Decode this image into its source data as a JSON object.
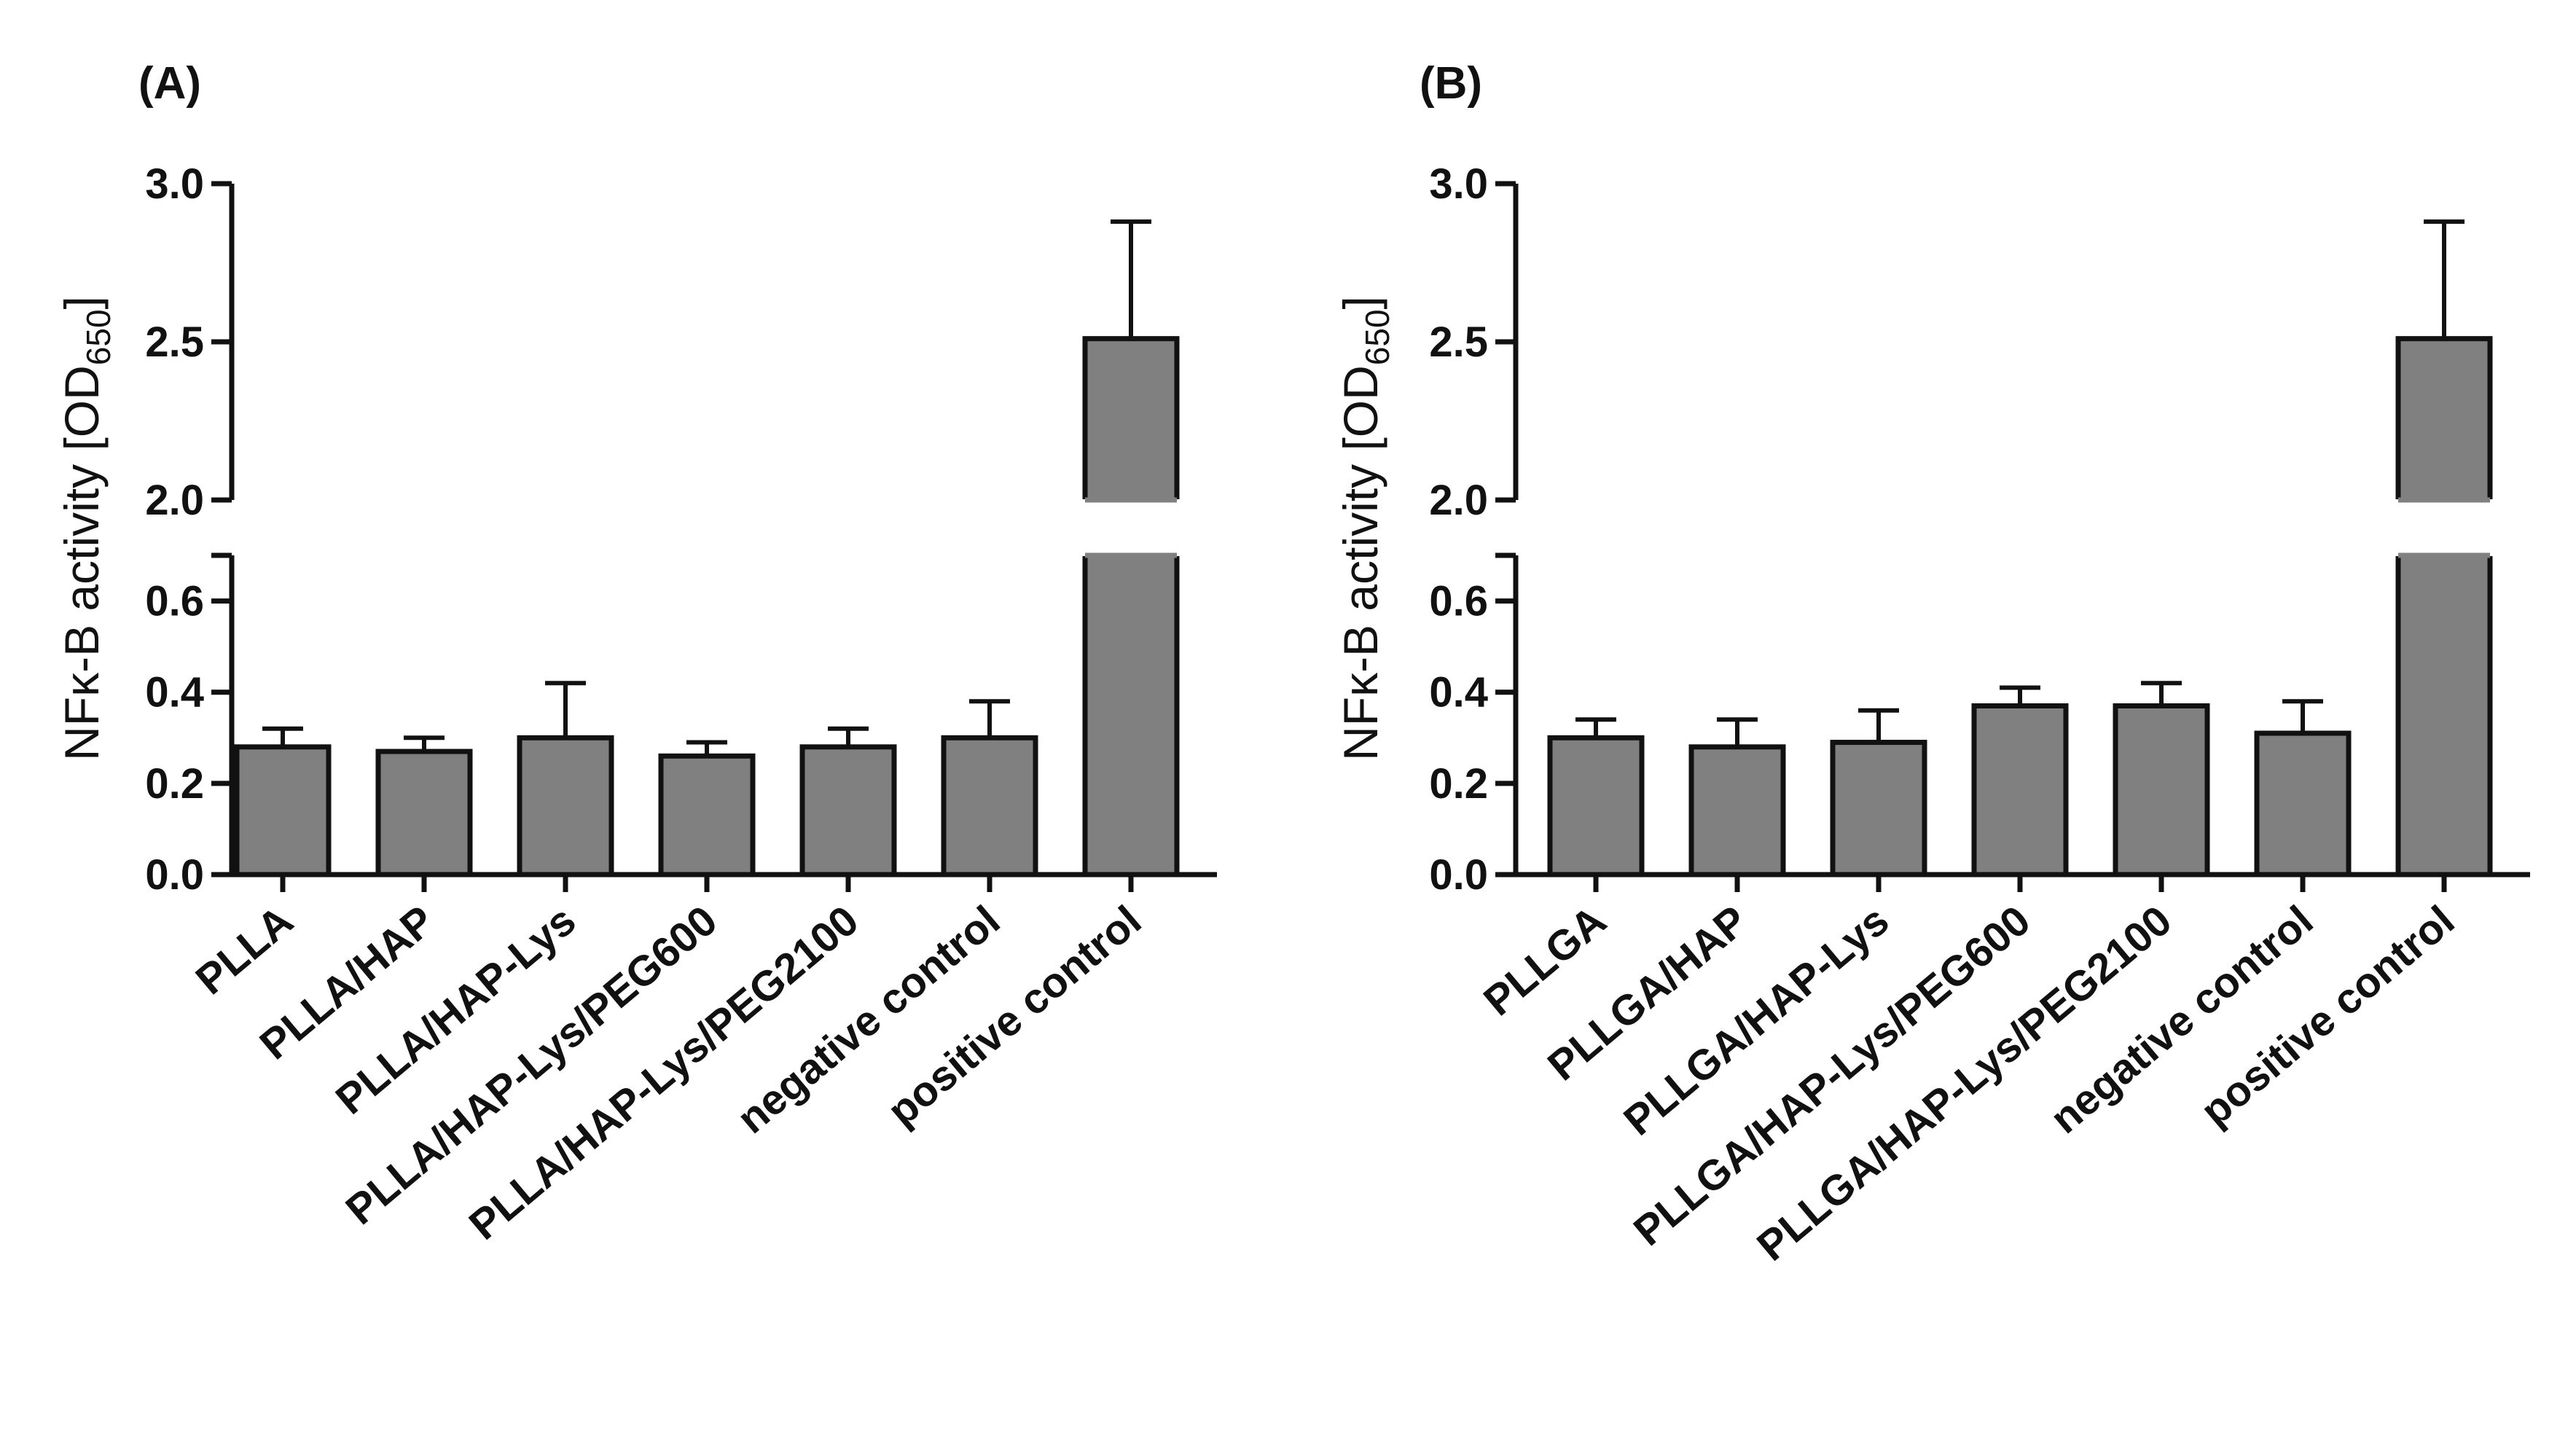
{
  "chart_data": [
    {
      "panel": "(A)",
      "type": "bar",
      "ylabel": {
        "main": "NFκ-B activity [OD",
        "sub": "650",
        "close": "]"
      },
      "axis_break": {
        "lower_range": [
          0,
          0.7
        ],
        "upper_range": [
          2.0,
          3.0
        ]
      },
      "lower_ticks": [
        "0.0",
        "0.2",
        "0.4",
        "0.6"
      ],
      "upper_ticks": [
        "2.0",
        "2.5",
        "3.0"
      ],
      "categories": [
        "PLLA",
        "PLLA/HAP",
        "PLLA/HAP-Lys",
        "PLLA/HAP-Lys/PEG600",
        "PLLA/HAP-Lys/PEG2100",
        "negative control",
        "positive control"
      ],
      "values": [
        0.28,
        0.27,
        0.3,
        0.26,
        0.28,
        0.3,
        2.51
      ],
      "errors": [
        0.04,
        0.03,
        0.12,
        0.03,
        0.04,
        0.08,
        0.37
      ],
      "bar_color": "#808080"
    },
    {
      "panel": "(B)",
      "type": "bar",
      "ylabel": {
        "main": "NFκ-B activity [OD",
        "sub": "650",
        "close": "]"
      },
      "axis_break": {
        "lower_range": [
          0,
          0.7
        ],
        "upper_range": [
          2.0,
          3.0
        ]
      },
      "lower_ticks": [
        "0.0",
        "0.2",
        "0.4",
        "0.6"
      ],
      "upper_ticks": [
        "2.0",
        "2.5",
        "3.0"
      ],
      "categories": [
        "PLLGA",
        "PLLGA/HAP",
        "PLLGA/HAP-Lys",
        "PLLGA/HAP-Lys/PEG600",
        "PLLGA/HAP-Lys/PEG2100",
        "negative control",
        "positive control"
      ],
      "values": [
        0.3,
        0.28,
        0.29,
        0.37,
        0.37,
        0.31,
        2.51
      ],
      "errors": [
        0.04,
        0.06,
        0.07,
        0.04,
        0.05,
        0.07,
        0.37
      ],
      "bar_color": "#808080"
    }
  ]
}
